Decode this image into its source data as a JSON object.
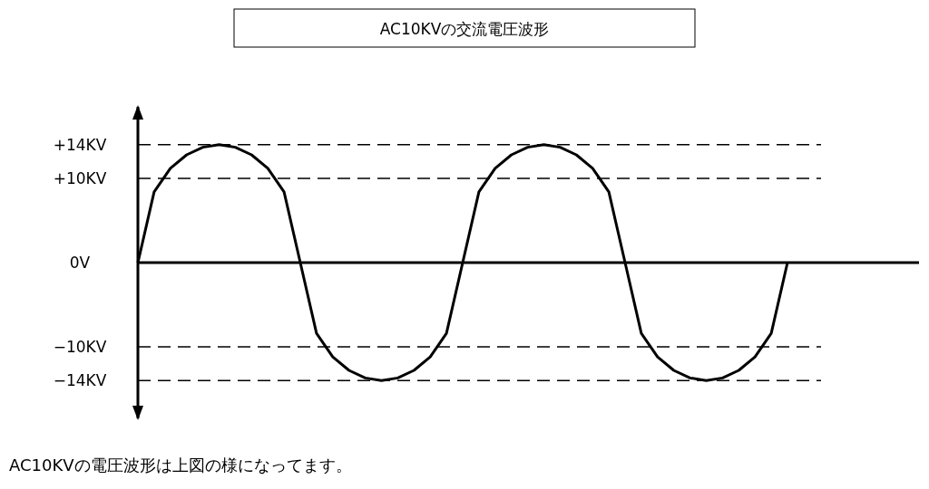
{
  "chart_data": {
    "type": "line",
    "title": "AC10KVの交流電圧波形",
    "categories": [
      null,
      null,
      null,
      null,
      null,
      null,
      null,
      null,
      null,
      null,
      null,
      null,
      null,
      null,
      null,
      null,
      null,
      null,
      null,
      null,
      null,
      null,
      null,
      null,
      null,
      null,
      null,
      null,
      null,
      null,
      null,
      null,
      null,
      null,
      null,
      null,
      null,
      null,
      null,
      null,
      null
    ],
    "series": [
      {
        "color": "#000000",
        "values": [
          0,
          8.4,
          11.2,
          12.8,
          13.7,
          14,
          13.7,
          12.8,
          11.2,
          8.4,
          0,
          -8.4,
          -11.2,
          -12.8,
          -13.7,
          -14,
          -13.7,
          -12.8,
          -11.2,
          -8.4,
          0,
          8.4,
          11.2,
          12.8,
          13.7,
          14,
          13.7,
          12.8,
          11.2,
          8.4,
          0,
          -8.4,
          -11.2,
          -12.8,
          -13.7,
          -14,
          -13.7,
          -12.8,
          -11.2,
          -8.4,
          0
        ]
      }
    ],
    "ylim": [
      -18.5,
      18.5
    ],
    "yticks": [
      {
        "value": 14,
        "label": "+14KV"
      },
      {
        "value": 10,
        "label": "+10KV"
      },
      {
        "value": 0,
        "label": "0V"
      },
      {
        "value": -10,
        "label": "−10KV"
      },
      {
        "value": -14,
        "label": "−14KV"
      }
    ],
    "ref_lines": [
      {
        "axis": "y",
        "value": 14,
        "label": null,
        "line_style": "dashed",
        "color": "#000000"
      },
      {
        "axis": "y",
        "value": 10,
        "label": null,
        "line_style": "dashed",
        "color": "#000000"
      },
      {
        "axis": "y",
        "value": -10,
        "label": null,
        "line_style": "dashed",
        "color": "#000000"
      },
      {
        "axis": "y",
        "value": -14,
        "label": null,
        "line_style": "dashed",
        "color": "#000000"
      }
    ],
    "tick_labels": "y",
    "line_style": "solid",
    "annotations": [
      "AC10KVの電圧波形は上図の様になってます。"
    ]
  }
}
